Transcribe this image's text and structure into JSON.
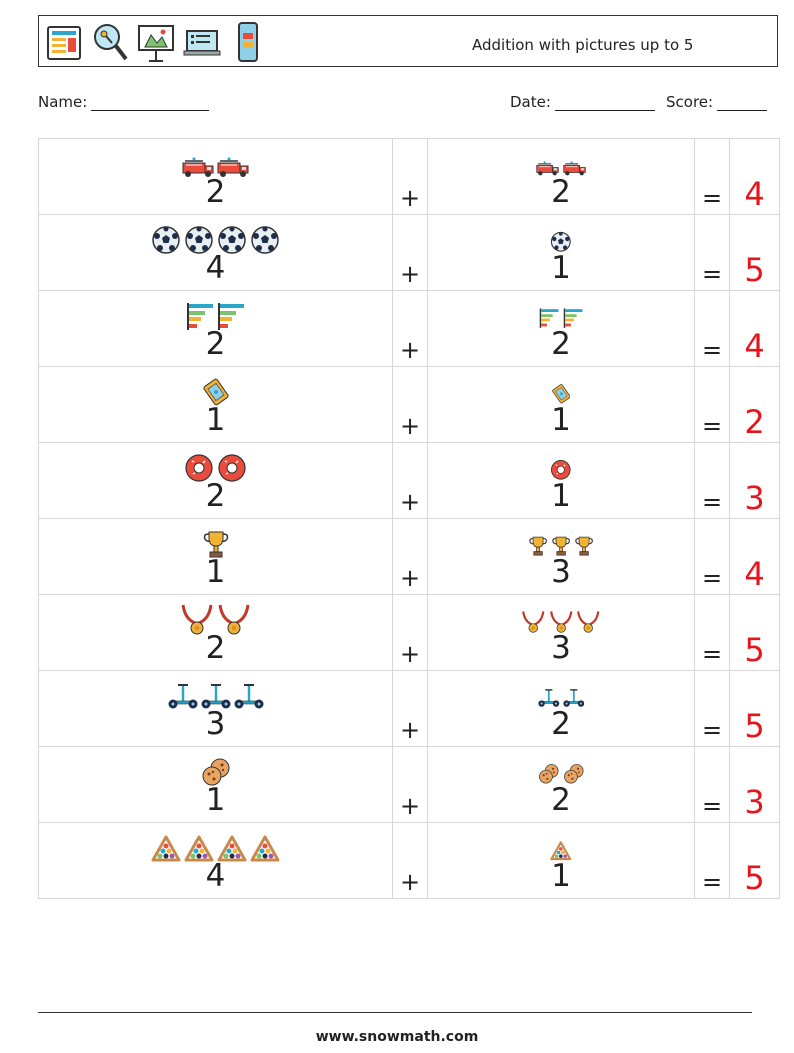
{
  "header": {
    "title": "Addition with pictures up to 5",
    "icons": [
      "newspaper-icon",
      "search-key-icon",
      "presentation-board-icon",
      "laptop-list-icon",
      "smartphone-icon"
    ]
  },
  "meta": {
    "name_label": "Name:",
    "date_label": "Date:",
    "score_label": "Score:"
  },
  "operator_plus": "+",
  "operator_equals": "=",
  "rows": [
    {
      "icon": "fire-truck-icon",
      "a": "2",
      "b": "2",
      "answer": "4"
    },
    {
      "icon": "soccer-ball-icon",
      "a": "4",
      "b": "1",
      "answer": "5"
    },
    {
      "icon": "bar-chart-icon",
      "a": "2",
      "b": "2",
      "answer": "4"
    },
    {
      "icon": "ticket-icon",
      "a": "1",
      "b": "1",
      "answer": "2"
    },
    {
      "icon": "donut-icon",
      "a": "2",
      "b": "1",
      "answer": "3"
    },
    {
      "icon": "trophy-icon",
      "a": "1",
      "b": "3",
      "answer": "4"
    },
    {
      "icon": "medal-icon",
      "a": "2",
      "b": "3",
      "answer": "5"
    },
    {
      "icon": "hoverboard-icon",
      "a": "3",
      "b": "2",
      "answer": "5"
    },
    {
      "icon": "cookie-icon",
      "a": "1",
      "b": "2",
      "answer": "3"
    },
    {
      "icon": "billiard-rack-icon",
      "a": "4",
      "b": "1",
      "answer": "5"
    }
  ],
  "footer": {
    "url": "www.snowmath.com"
  }
}
